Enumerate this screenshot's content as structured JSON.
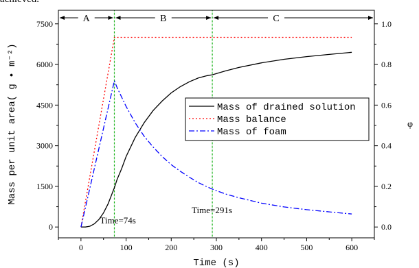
{
  "page": {
    "caption_fragment": "achieved."
  },
  "chart_data": {
    "type": "line",
    "x_axis": {
      "label": "Time (s)",
      "range": [
        -50,
        650
      ],
      "ticks": [
        0,
        100,
        200,
        300,
        400,
        500,
        600
      ]
    },
    "y_left": {
      "label": "Mass per unit area( g • m⁻²)",
      "range": [
        -400,
        8000
      ],
      "ticks": [
        0,
        1500,
        3000,
        4500,
        6000,
        7500
      ]
    },
    "y_right": {
      "label": "φ",
      "range": [
        -0.05333,
        1.0667
      ],
      "ticks": [
        "0.0",
        "0.2",
        "0.4",
        "0.6",
        "0.8",
        "1.0"
      ]
    },
    "phases": [
      {
        "label": "A",
        "x_start": -50,
        "x_end": 74
      },
      {
        "label": "B",
        "x_start": 74,
        "x_end": 291
      },
      {
        "label": "C",
        "x_start": 291,
        "x_end": 650
      }
    ],
    "vlines": [
      {
        "x": 74,
        "label": "Time=74s",
        "color": "#00aa00"
      },
      {
        "x": 291,
        "label": "Time=291s",
        "color": "#00aa00"
      }
    ],
    "series": [
      {
        "name": "Mass of drained solution",
        "color": "#000000",
        "dash": "",
        "axis": "left",
        "points": [
          [
            0,
            0
          ],
          [
            10,
            0
          ],
          [
            20,
            30
          ],
          [
            30,
            120
          ],
          [
            40,
            280
          ],
          [
            50,
            520
          ],
          [
            60,
            850
          ],
          [
            74,
            1450
          ],
          [
            80,
            1750
          ],
          [
            90,
            2150
          ],
          [
            100,
            2600
          ],
          [
            120,
            3300
          ],
          [
            140,
            3850
          ],
          [
            160,
            4300
          ],
          [
            180,
            4650
          ],
          [
            200,
            4950
          ],
          [
            220,
            5180
          ],
          [
            240,
            5360
          ],
          [
            260,
            5500
          ],
          [
            280,
            5590
          ],
          [
            291,
            5620
          ],
          [
            320,
            5760
          ],
          [
            350,
            5890
          ],
          [
            400,
            6060
          ],
          [
            450,
            6190
          ],
          [
            500,
            6290
          ],
          [
            550,
            6370
          ],
          [
            600,
            6450
          ]
        ]
      },
      {
        "name": "Mass balance",
        "color": "#ff0000",
        "dash": "2,3",
        "axis": "left",
        "points": [
          [
            0,
            0
          ],
          [
            74,
            7000
          ],
          [
            600,
            7000
          ]
        ]
      },
      {
        "name": "Mass of foam",
        "color": "#0000ff",
        "dash": "8,3,2,3",
        "axis": "left",
        "points": [
          [
            0,
            0
          ],
          [
            74,
            5400
          ],
          [
            80,
            5150
          ],
          [
            90,
            4800
          ],
          [
            100,
            4450
          ],
          [
            120,
            3850
          ],
          [
            140,
            3350
          ],
          [
            160,
            2950
          ],
          [
            180,
            2600
          ],
          [
            200,
            2300
          ],
          [
            220,
            2060
          ],
          [
            240,
            1840
          ],
          [
            260,
            1640
          ],
          [
            280,
            1480
          ],
          [
            291,
            1400
          ],
          [
            320,
            1220
          ],
          [
            350,
            1080
          ],
          [
            400,
            880
          ],
          [
            450,
            740
          ],
          [
            500,
            640
          ],
          [
            550,
            560
          ],
          [
            600,
            480
          ]
        ]
      }
    ],
    "legend": {
      "placement": "right"
    }
  }
}
